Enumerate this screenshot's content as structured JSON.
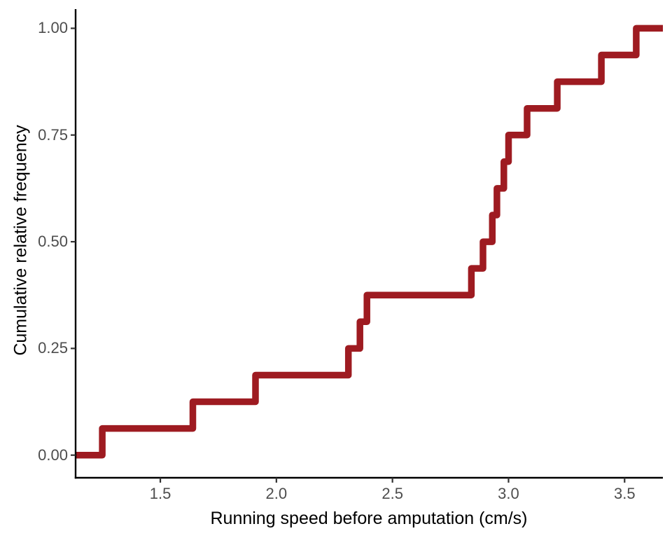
{
  "figure": {
    "background_color": "#ffffff"
  },
  "chart_data": {
    "type": "line",
    "subtype": "ecdf-step",
    "title": "",
    "xlabel": "Running speed before amputation (cm/s)",
    "ylabel": "Cumulative relative frequency",
    "n_observations": 16,
    "step_increment": 0.0625,
    "x": [
      1.25,
      1.64,
      1.91,
      2.31,
      2.36,
      2.39,
      2.84,
      2.89,
      2.93,
      2.95,
      2.98,
      3.0,
      3.08,
      3.21,
      3.4,
      3.55
    ],
    "y": [
      0.0625,
      0.125,
      0.1875,
      0.25,
      0.3125,
      0.375,
      0.4375,
      0.5,
      0.5625,
      0.625,
      0.6875,
      0.75,
      0.8125,
      0.875,
      0.9375,
      1.0
    ],
    "xlim": [
      1.135,
      3.665
    ],
    "ylim": [
      -0.053,
      1.045
    ],
    "xticks": {
      "values": [
        1.5,
        2.0,
        2.5,
        3.0,
        3.5
      ],
      "labels": [
        "1.5",
        "2.0",
        "2.5",
        "3.0",
        "3.5"
      ]
    },
    "yticks": {
      "values": [
        0.0,
        0.25,
        0.5,
        0.75,
        1.0
      ],
      "labels": [
        "0.00",
        "0.25",
        "0.50",
        "0.75",
        "1.00"
      ]
    },
    "grid": false,
    "legend": "none",
    "line_color": "#9E1B21",
    "line_width": 9.5,
    "axis_color": "#000000",
    "tick_color": "#333333",
    "tick_label_color": "#4d4d4d",
    "axis_title_color": "#000000"
  }
}
